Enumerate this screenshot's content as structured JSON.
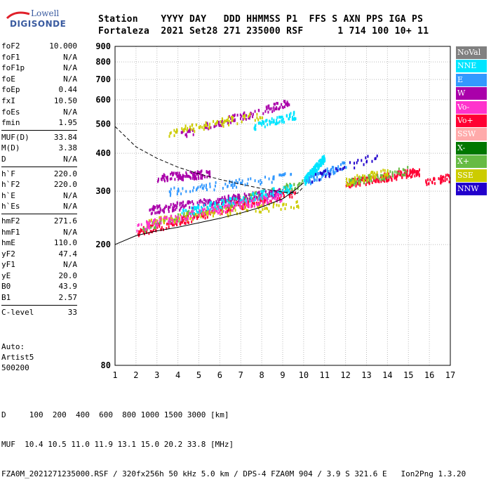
{
  "logo": {
    "line1": "Lowell",
    "line2": "DIGISONDE"
  },
  "header": {
    "row1": "Station    YYYY DAY   DDD HHMMSS P1  FFS S AXN PPS IGA PS",
    "row2": "Fortaleza  2021 Set28 271 235000 RSF      1 714 100 10+ 11"
  },
  "params": [
    {
      "label": "foF2",
      "value": "10.000"
    },
    {
      "label": "foF1",
      "value": "N/A"
    },
    {
      "label": "foF1p",
      "value": "N/A"
    },
    {
      "label": "foE",
      "value": "N/A"
    },
    {
      "label": "foEp",
      "value": "0.44"
    },
    {
      "label": "fxI",
      "value": "10.50"
    },
    {
      "label": "foEs",
      "value": "N/A"
    },
    {
      "label": "fmin",
      "value": "1.95"
    },
    {
      "sep": true
    },
    {
      "label": "MUF(D)",
      "value": "33.84"
    },
    {
      "label": "M(D)",
      "value": "3.38"
    },
    {
      "label": "D",
      "value": "N/A"
    },
    {
      "sep": true
    },
    {
      "label": "h`F",
      "value": "220.0"
    },
    {
      "label": "h`F2",
      "value": "220.0"
    },
    {
      "label": "h`E",
      "value": "N/A"
    },
    {
      "label": "h`Es",
      "value": "N/A"
    },
    {
      "sep": true
    },
    {
      "label": "hmF2",
      "value": "271.6"
    },
    {
      "label": "hmF1",
      "value": "N/A"
    },
    {
      "label": "hmE",
      "value": "110.0"
    },
    {
      "label": "yF2",
      "value": "47.4"
    },
    {
      "label": "yF1",
      "value": "N/A"
    },
    {
      "label": "yE",
      "value": "20.0"
    },
    {
      "label": "B0",
      "value": "43.9"
    },
    {
      "label": "B1",
      "value": "2.57"
    },
    {
      "sep": true
    },
    {
      "label": "C-level",
      "value": "33"
    }
  ],
  "auto": {
    "line1": "Auto:",
    "line2": "Artist5",
    "line3": "500200"
  },
  "bottom": {
    "d_row": "D     100  200  400  600  800 1000 1500 3000 [km]",
    "muf_row": "MUF  10.4 10.5 11.0 11.9 13.1 15.0 20.2 33.8 [MHz]",
    "footer": "FZA0M_2021271235000.RSF / 320fx256h 50 kHz 5.0 km / DPS-4 FZA0M 904 / 3.9 S 321.6 E   Ion2Png 1.3.20"
  },
  "legend": [
    {
      "label": "NoVal",
      "color": "#808080"
    },
    {
      "label": "NNE",
      "color": "#00e5ff"
    },
    {
      "label": "E",
      "color": "#3399ff"
    },
    {
      "label": "W",
      "color": "#aa00aa"
    },
    {
      "label": "Vo-",
      "color": "#ff33cc"
    },
    {
      "label": "Vo+",
      "color": "#ff0033"
    },
    {
      "label": "SSW",
      "color": "#ffaaaa"
    },
    {
      "label": "X-",
      "color": "#007700"
    },
    {
      "label": "X+",
      "color": "#66bb44"
    },
    {
      "label": "SSE",
      "color": "#cccc00"
    },
    {
      "label": "NNW",
      "color": "#2200cc"
    }
  ],
  "chart_data": {
    "type": "scatter",
    "xlim": [
      1,
      17
    ],
    "ylim": [
      80,
      900
    ],
    "y_scale": "log",
    "x_ticks": [
      "1",
      "2",
      "3",
      "4",
      "5",
      "6",
      "7",
      "8",
      "9",
      "10",
      "11",
      "12",
      "13",
      "14",
      "15",
      "16",
      "17"
    ],
    "y_ticks": [
      "80",
      "200",
      "300",
      "400",
      "500",
      "600",
      "700",
      "800",
      "900"
    ],
    "grid": true,
    "legend_position": "right",
    "trace_groups": [
      {
        "series": "Vo+",
        "f_range": [
          2.0,
          9.6
        ],
        "h_start": 220,
        "h_end": 300,
        "points": 230
      },
      {
        "series": "X+",
        "f_range": [
          2.3,
          10.0
        ],
        "h_start": 228,
        "h_end": 320,
        "points": 170
      },
      {
        "series": "W",
        "f_range": [
          2.6,
          9.0
        ],
        "h_start": 262,
        "h_end": 300,
        "points": 230
      },
      {
        "series": "W",
        "f_range": [
          3.0,
          5.5
        ],
        "h_start": 336,
        "h_end": 345,
        "points": 110
      },
      {
        "series": "NNE",
        "f_range": [
          4.0,
          9.5
        ],
        "h_start": 255,
        "h_end": 310,
        "points": 130
      },
      {
        "series": "E",
        "f_range": [
          3.5,
          9.5
        ],
        "h_start": 300,
        "h_end": 340,
        "points": 80
      },
      {
        "series": "SSE",
        "f_range": [
          2.5,
          9.8
        ],
        "h_start": 240,
        "h_end": 275,
        "points": 110
      },
      {
        "series": "Vo-",
        "f_range": [
          2.0,
          9.0
        ],
        "h_start": 230,
        "h_end": 290,
        "points": 140
      },
      {
        "series": "W",
        "f_range": [
          4.0,
          9.3
        ],
        "h_start": 460,
        "h_end": 590,
        "points": 110
      },
      {
        "series": "NNE",
        "f_range": [
          7.6,
          9.6
        ],
        "h_start": 490,
        "h_end": 540,
        "points": 70
      },
      {
        "series": "SSE",
        "f_range": [
          3.5,
          8.0
        ],
        "h_start": 470,
        "h_end": 540,
        "points": 80
      },
      {
        "series": "NNE",
        "f_range": [
          10.0,
          11.0
        ],
        "h_start": 325,
        "h_end": 390,
        "points": 160
      },
      {
        "series": "E",
        "f_range": [
          10.1,
          12.0
        ],
        "h_start": 325,
        "h_end": 370,
        "points": 70
      },
      {
        "series": "Vo+",
        "f_range": [
          12.0,
          15.5
        ],
        "h_start": 320,
        "h_end": 350,
        "points": 160
      },
      {
        "series": "X+",
        "f_range": [
          12.0,
          15.0
        ],
        "h_start": 320,
        "h_end": 355,
        "points": 70
      },
      {
        "series": "SSE",
        "f_range": [
          12.0,
          14.0
        ],
        "h_start": 325,
        "h_end": 350,
        "points": 50
      },
      {
        "series": "Vo+",
        "f_range": [
          15.8,
          17.0
        ],
        "h_start": 325,
        "h_end": 335,
        "points": 40
      },
      {
        "series": "NNW",
        "f_range": [
          10.3,
          13.5
        ],
        "h_start": 330,
        "h_end": 395,
        "points": 35
      }
    ],
    "profile_curve": {
      "f": [
        1.0,
        2.0,
        3.0,
        4.0,
        5.0,
        6.0,
        7.0,
        8.0,
        9.0,
        9.6,
        10.0
      ],
      "h": [
        200,
        214,
        222,
        228,
        236,
        244,
        254,
        266,
        283,
        303,
        320
      ]
    },
    "scaled_curve": {
      "f": [
        1.0,
        2.0,
        3.0,
        4.0,
        5.0,
        6.0,
        7.0,
        8.0,
        9.0,
        9.7,
        10.0
      ],
      "h": [
        490,
        420,
        385,
        360,
        342,
        328,
        316,
        306,
        298,
        295,
        310
      ]
    }
  }
}
